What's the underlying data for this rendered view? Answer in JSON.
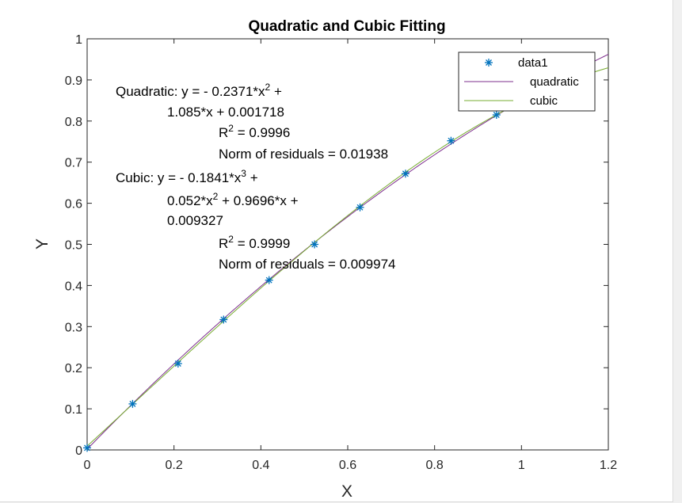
{
  "chart_data": {
    "type": "scatter",
    "title": "Quadratic and Cubic Fitting",
    "xlabel": "X",
    "ylabel": "Y",
    "xlim": [
      0,
      1.2
    ],
    "ylim": [
      0,
      1
    ],
    "x_ticks": [
      "0",
      "0.2",
      "0.4",
      "0.6",
      "0.8",
      "1",
      "1.2"
    ],
    "y_ticks": [
      "0",
      "0.1",
      "0.2",
      "0.3",
      "0.4",
      "0.5",
      "0.6",
      "0.7",
      "0.8",
      "0.9",
      "1"
    ],
    "grid": false,
    "legend_position": "top-right",
    "series": [
      {
        "name": "data1",
        "kind": "markers",
        "marker": "asterisk",
        "color": "#0072BD",
        "x": [
          0,
          0.1047,
          0.2094,
          0.3142,
          0.4189,
          0.5236,
          0.6283,
          0.733,
          0.8378,
          0.9425
        ],
        "y": [
          0.005,
          0.112,
          0.21,
          0.317,
          0.413,
          0.5,
          0.59,
          0.672,
          0.752,
          0.815
        ]
      },
      {
        "name": "quadratic",
        "kind": "curve",
        "color": "#7E2F8E",
        "coefficients": [
          -0.2371,
          1.085,
          0.001718
        ],
        "x_range": [
          0,
          1.2
        ]
      },
      {
        "name": "cubic",
        "kind": "curve",
        "color": "#77AC30",
        "coefficients": [
          -0.1841,
          0.052,
          0.9696,
          0.009327
        ],
        "x_range": [
          0,
          1.2
        ]
      }
    ],
    "annotations": {
      "quad_line1_pre": "Quadratic:   y  =  -  0.2371*x",
      "quad_line1_sup": "2",
      "quad_line1_post": "  +",
      "quad_line2": "1.085*x  +  0.001718",
      "quad_r2_pre": "R",
      "quad_r2_sup": "2",
      "quad_r2_post": "  =  0.9996",
      "quad_norm": "Norm  of  residuals  =  0.01938",
      "cubic_line1_pre": "Cubic:   y  =  -  0.1841*x",
      "cubic_line1_sup": "3",
      "cubic_line1_post": "  +",
      "cubic_line2_pre": "0.052*x",
      "cubic_line2_sup": "2",
      "cubic_line2_post": "  +  0.9696*x  +",
      "cubic_line3": "0.009327",
      "cubic_r2_pre": "R",
      "cubic_r2_sup": "2",
      "cubic_r2_post": "  =  0.9999",
      "cubic_norm": "Norm  of  residuals  =  0.009974"
    }
  }
}
